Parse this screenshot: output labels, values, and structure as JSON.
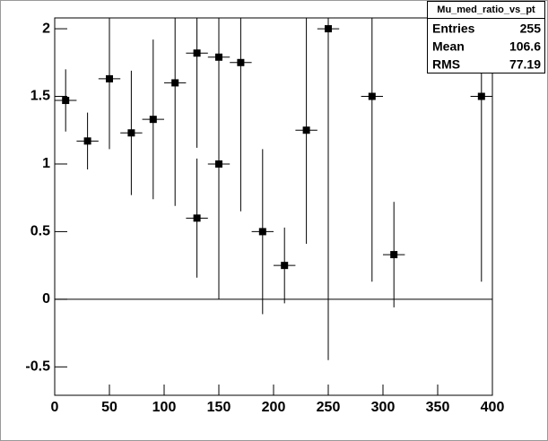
{
  "chart_data": {
    "type": "errorbar",
    "x": [
      10,
      30,
      50,
      70,
      90,
      110,
      130,
      130,
      150,
      150,
      170,
      190,
      210,
      230,
      250,
      290,
      310,
      390
    ],
    "values": [
      1.47,
      1.17,
      1.63,
      1.23,
      1.33,
      1.6,
      1.82,
      0.6,
      1.79,
      1.0,
      1.75,
      0.5,
      0.25,
      1.25,
      2.0,
      1.5,
      0.33,
      1.5
    ],
    "errors": [
      0.23,
      0.21,
      0.52,
      0.46,
      0.59,
      0.91,
      0.7,
      0.44,
      0.8,
      1.0,
      1.1,
      0.61,
      0.28,
      0.84,
      2.45,
      1.37,
      0.39,
      1.37
    ],
    "xerr": 10,
    "color": "#000000",
    "xlim": [
      0,
      400
    ],
    "xticks": [
      0,
      50,
      100,
      150,
      200,
      250,
      300,
      350,
      400
    ],
    "ylim": [
      -0.71,
      2.08
    ],
    "yticks": [
      -0.5,
      0,
      0.5,
      1,
      1.5,
      2
    ],
    "stats": {
      "title": "Mu_med_ratio_vs_pt",
      "rows": [
        {
          "label": "Entries",
          "value": 255
        },
        {
          "label": "Mean",
          "value": 106.6
        },
        {
          "label": "RMS",
          "value": 77.19
        }
      ]
    }
  }
}
